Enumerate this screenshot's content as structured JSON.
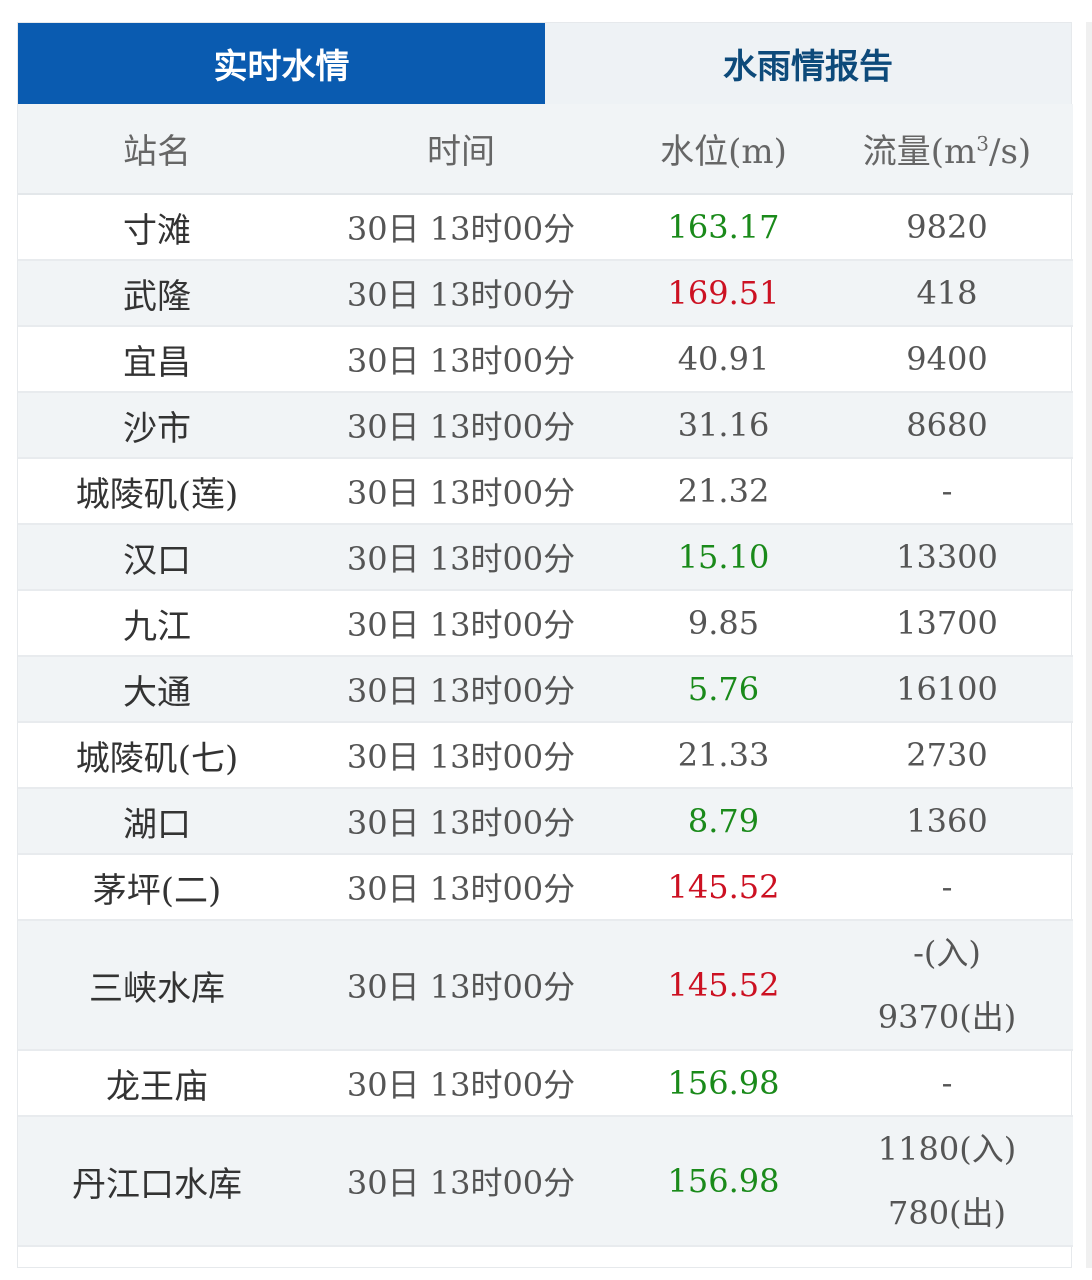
{
  "tabs": [
    {
      "label": "实时水情",
      "active": true
    },
    {
      "label": "水雨情报告",
      "active": false
    }
  ],
  "colors": {
    "tab_active": "#0a5bb0",
    "above_normal": "#cc1122",
    "below_normal": "#1a8a1a"
  },
  "table": {
    "headers": [
      "站名",
      "时间",
      "水位(m)",
      "流量(m³/s)"
    ],
    "rows": [
      {
        "station": "寸滩",
        "time": "30日 13时00分",
        "level": "163.17",
        "level_status": "green",
        "flow": [
          "9820"
        ]
      },
      {
        "station": "武隆",
        "time": "30日 13时00分",
        "level": "169.51",
        "level_status": "red",
        "flow": [
          "418"
        ]
      },
      {
        "station": "宜昌",
        "time": "30日 13时00分",
        "level": "40.91",
        "level_status": "normal",
        "flow": [
          "9400"
        ]
      },
      {
        "station": "沙市",
        "time": "30日 13时00分",
        "level": "31.16",
        "level_status": "normal",
        "flow": [
          "8680"
        ]
      },
      {
        "station": "城陵矶(莲)",
        "time": "30日 13时00分",
        "level": "21.32",
        "level_status": "normal",
        "flow": [
          "-"
        ]
      },
      {
        "station": "汉口",
        "time": "30日 13时00分",
        "level": "15.10",
        "level_status": "green",
        "flow": [
          "13300"
        ]
      },
      {
        "station": "九江",
        "time": "30日 13时00分",
        "level": "9.85",
        "level_status": "normal",
        "flow": [
          "13700"
        ]
      },
      {
        "station": "大通",
        "time": "30日 13时00分",
        "level": "5.76",
        "level_status": "green",
        "flow": [
          "16100"
        ]
      },
      {
        "station": "城陵矶(七)",
        "time": "30日 13时00分",
        "level": "21.33",
        "level_status": "normal",
        "flow": [
          "2730"
        ]
      },
      {
        "station": "湖口",
        "time": "30日 13时00分",
        "level": "8.79",
        "level_status": "green",
        "flow": [
          "1360"
        ]
      },
      {
        "station": "茅坪(二)",
        "time": "30日 13时00分",
        "level": "145.52",
        "level_status": "red",
        "flow": [
          "-"
        ]
      },
      {
        "station": "三峡水库",
        "time": "30日 13时00分",
        "level": "145.52",
        "level_status": "red",
        "flow": [
          "-(入)",
          "9370(出)"
        ]
      },
      {
        "station": "龙王庙",
        "time": "30日 13时00分",
        "level": "156.98",
        "level_status": "green",
        "flow": [
          "-"
        ]
      },
      {
        "station": "丹江口水库",
        "time": "30日 13时00分",
        "level": "156.98",
        "level_status": "green",
        "flow": [
          "1180(入)",
          "780(出)"
        ]
      }
    ]
  }
}
